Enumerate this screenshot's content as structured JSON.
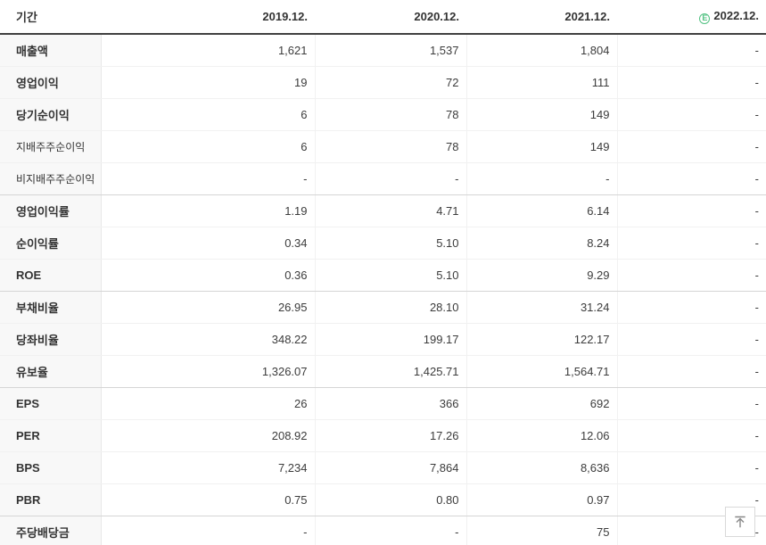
{
  "table": {
    "header": {
      "period": "기간",
      "years": [
        "2019.12.",
        "2020.12.",
        "2021.12.",
        "2022.12."
      ],
      "estimate_badge": "E",
      "estimate_year_index": 3
    },
    "rows": [
      {
        "label": "매출액",
        "type": "main",
        "group_end": false,
        "values": [
          "1,621",
          "1,537",
          "1,804",
          "-"
        ]
      },
      {
        "label": "영업이익",
        "type": "main",
        "group_end": false,
        "values": [
          "19",
          "72",
          "111",
          "-"
        ]
      },
      {
        "label": "당기순이익",
        "type": "main",
        "group_end": false,
        "values": [
          "6",
          "78",
          "149",
          "-"
        ]
      },
      {
        "label": "지배주주순이익",
        "type": "sub",
        "group_end": false,
        "values": [
          "6",
          "78",
          "149",
          "-"
        ]
      },
      {
        "label": "비지배주주순이익",
        "type": "sub",
        "group_end": true,
        "values": [
          "-",
          "-",
          "-",
          "-"
        ]
      },
      {
        "label": "영업이익률",
        "type": "main",
        "group_end": false,
        "values": [
          "1.19",
          "4.71",
          "6.14",
          "-"
        ]
      },
      {
        "label": "순이익률",
        "type": "main",
        "group_end": false,
        "values": [
          "0.34",
          "5.10",
          "8.24",
          "-"
        ]
      },
      {
        "label": "ROE",
        "type": "main",
        "group_end": true,
        "values": [
          "0.36",
          "5.10",
          "9.29",
          "-"
        ]
      },
      {
        "label": "부채비율",
        "type": "main",
        "group_end": false,
        "values": [
          "26.95",
          "28.10",
          "31.24",
          "-"
        ]
      },
      {
        "label": "당좌비율",
        "type": "main",
        "group_end": false,
        "values": [
          "348.22",
          "199.17",
          "122.17",
          "-"
        ]
      },
      {
        "label": "유보율",
        "type": "main",
        "group_end": true,
        "values": [
          "1,326.07",
          "1,425.71",
          "1,564.71",
          "-"
        ]
      },
      {
        "label": "EPS",
        "type": "main",
        "group_end": false,
        "values": [
          "26",
          "366",
          "692",
          "-"
        ]
      },
      {
        "label": "PER",
        "type": "main",
        "group_end": false,
        "values": [
          "208.92",
          "17.26",
          "12.06",
          "-"
        ]
      },
      {
        "label": "BPS",
        "type": "main",
        "group_end": false,
        "values": [
          "7,234",
          "7,864",
          "8,636",
          "-"
        ]
      },
      {
        "label": "PBR",
        "type": "main",
        "group_end": true,
        "values": [
          "0.75",
          "0.80",
          "0.97",
          "-"
        ]
      },
      {
        "label": "주당배당금",
        "type": "main",
        "group_end": false,
        "values": [
          "-",
          "-",
          "75",
          "-"
        ]
      }
    ]
  },
  "scroll_top": {
    "icon_name": "arrow-up-to-top-icon"
  },
  "colors": {
    "estimate_green": "#53c283",
    "header_border": "#404040",
    "group_border": "#d5d5d5",
    "row_border": "#f1f1f1",
    "label_bg": "#f8f8f8",
    "text": "#333333"
  }
}
